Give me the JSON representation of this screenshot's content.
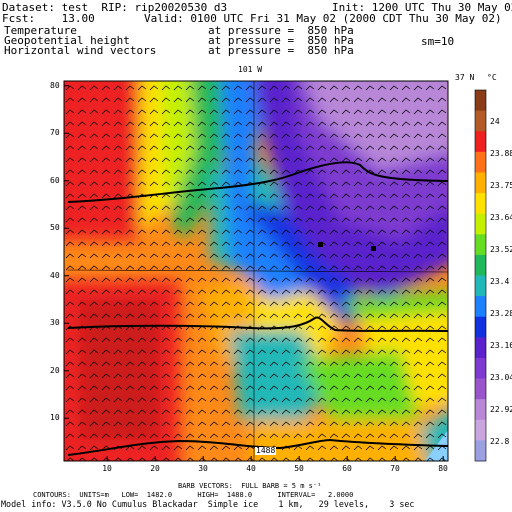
{
  "header": {
    "line1_left": "Dataset: test  RIP: rip20020530 d3",
    "line1_right": "Init: 1200 UTC Thu 30 May 02",
    "fcst": "Fcst:    13.00",
    "valid": "Valid: 0100 UTC Fri 31 May 02 (2000 CDT Thu 30 May 02)",
    "fields": [
      {
        "name": "Temperature",
        "level": "at pressure =  850 hPa"
      },
      {
        "name": "Geopotential height",
        "level": "at pressure =  850 hPa"
      },
      {
        "name": "Horizontal wind vectors",
        "level": "at pressure =  850 hPa"
      }
    ],
    "sm": "sm=10"
  },
  "map": {
    "top_label": "101 W",
    "right_label": "37 N",
    "unit_label": "°C",
    "x_ticks": [
      10,
      20,
      30,
      40,
      50,
      60,
      70,
      80
    ],
    "y_ticks": [
      10,
      20,
      30,
      40,
      50,
      60,
      70,
      80
    ],
    "x_range": [
      1,
      81
    ],
    "y_range": [
      1,
      81
    ],
    "contour_label": "1488",
    "colorbar_labels": [
      "24",
      "23.88",
      "23.75",
      "23.64",
      "23.52",
      "23.4",
      "23.28",
      "23.16",
      "23.04",
      "22.92",
      "22.8"
    ],
    "colorbar_colors": [
      "#8a3c18",
      "#b45a26",
      "#ee2020",
      "#ff7018",
      "#ffb000",
      "#ffe100",
      "#c4f000",
      "#66dd22",
      "#20b85a",
      "#20b8b8",
      "#1c80ff",
      "#1232e0",
      "#5a22cc",
      "#7e3ad0",
      "#9b55cc",
      "#b887d8",
      "#c9a6df",
      "#9aa0e2"
    ]
  },
  "footer": {
    "barb": "BARB VECTORS:  FULL BARB = 5 m s⁻¹",
    "contours": "CONTOURS:  UNITS=m   LOW=  1482.0      HIGH=  1488.0      INTERVAL=   2.0000",
    "model": "Model info: V3.5.0 No Cumulus Blackadar  Simple ice    1 km,   29 levels,    3 sec"
  }
}
